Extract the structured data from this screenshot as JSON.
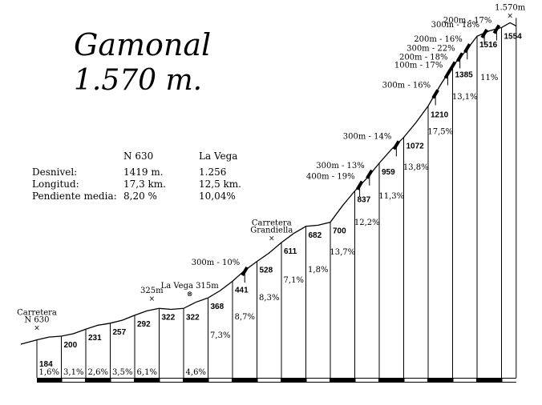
{
  "title": "Gamonal",
  "subtitle": "1.570 m.",
  "stats": {
    "headers": [
      "N 630",
      "La Vega"
    ],
    "rows": [
      {
        "label": "Desnivel:",
        "n630": "1419 m.",
        "lavega": "1.256"
      },
      {
        "label": "Longitud:",
        "n630": "17,3 km.",
        "lavega": "12,5 km."
      },
      {
        "label": "Pendiente media:",
        "n630": "8,20 %",
        "lavega": "10,04%"
      }
    ]
  },
  "chart_data": {
    "type": "area",
    "title": "Gamonal",
    "subtitle": "1.570 m.",
    "xlabel": "",
    "ylabel": "",
    "segment_length_km": 1,
    "altitudes": [
      184,
      200,
      231,
      257,
      292,
      322,
      322,
      368,
      441,
      528,
      611,
      682,
      700,
      837,
      959,
      1072,
      1210,
      1385,
      1516,
      1554
    ],
    "gradients": [
      "1,6%",
      "3,1%",
      "2,6%",
      "3,5%",
      "6,1%",
      "",
      "4,6%",
      "7,3%",
      "8,7%",
      "8,3%",
      "7,1%",
      "1,8%",
      "13,7%",
      "12,2%",
      "11,3%",
      "13,8%",
      "17,5%",
      "13,1%",
      "11%"
    ],
    "annotations": [
      {
        "text": "Carretera N 630",
        "km": 0,
        "marker": "×"
      },
      {
        "text": "325m",
        "km": 4.7,
        "marker": "×"
      },
      {
        "text": "La Vega 315m",
        "km": 6.25,
        "marker": "⊗"
      },
      {
        "text": "Carretera Grandiella",
        "km": 9.6,
        "marker": "×"
      },
      {
        "text": "1.570m",
        "km": 19.35,
        "marker": "×"
      }
    ],
    "steep_sections": [
      {
        "text": "300m - 10%",
        "km": 8.5
      },
      {
        "text": "400m - 19%",
        "km": 13.2
      },
      {
        "text": "300m - 13%",
        "km": 13.6
      },
      {
        "text": "300m - 14%",
        "km": 14.7
      },
      {
        "text": "300m - 16%",
        "km": 16.3
      },
      {
        "text": "100m - 17%",
        "km": 16.8
      },
      {
        "text": "200m - 18%",
        "km": 17.0
      },
      {
        "text": "300m - 22%",
        "km": 17.3
      },
      {
        "text": "200m - 16%",
        "km": 17.6
      },
      {
        "text": "300m - 18%",
        "km": 18.3
      },
      {
        "text": "200m - 17%",
        "km": 18.8
      }
    ]
  }
}
